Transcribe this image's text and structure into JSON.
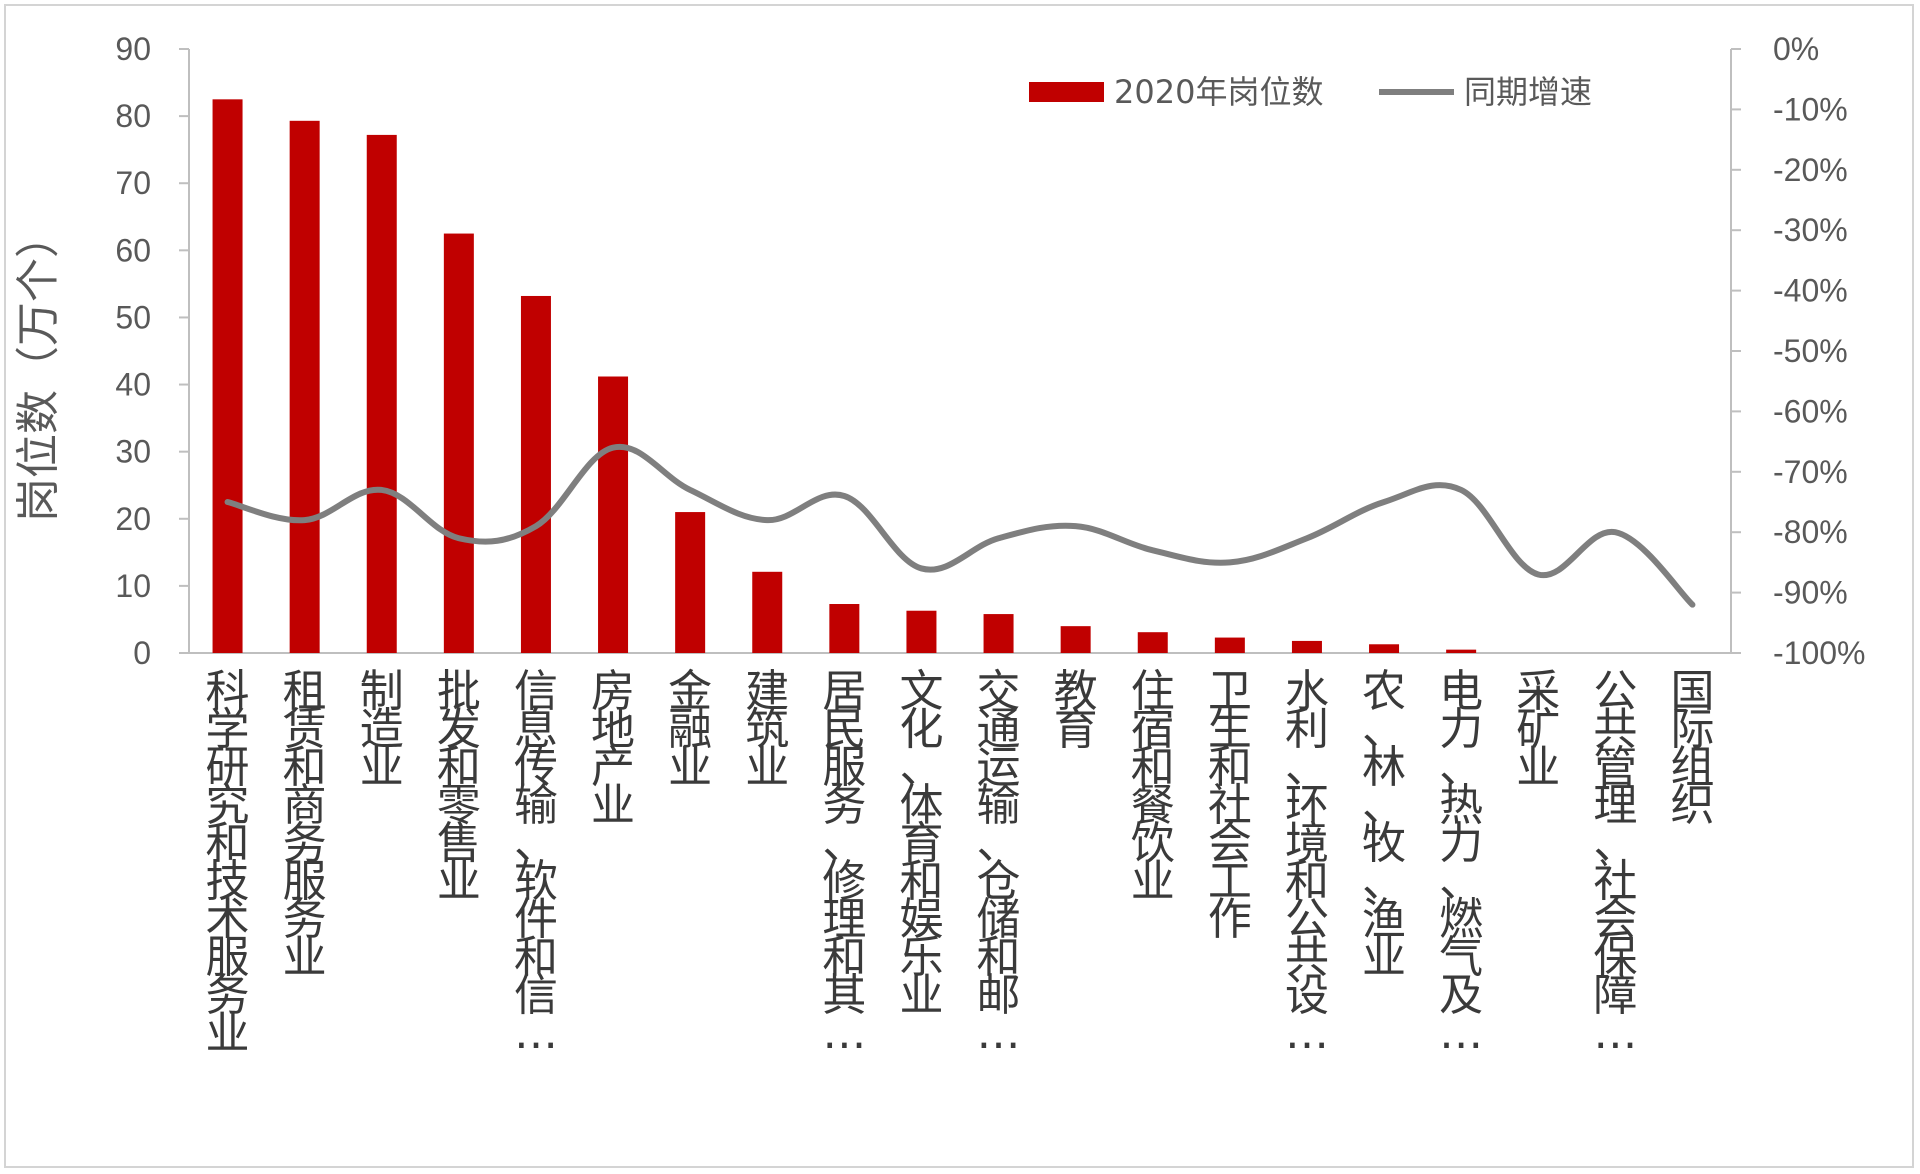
{
  "chart_data": {
    "type": "bar+line",
    "categories": [
      "科学研究和技术服务业",
      "租赁和商务服务业",
      "制造业",
      "批发和零售业",
      "信息传输、软件和信…",
      "房地产业",
      "金融业",
      "建筑业",
      "居民服务、修理和其…",
      "文化、体育和娱乐业",
      "交通运输、仓储和邮…",
      "教育",
      "住宿和餐饮业",
      "卫生和社会工作",
      "水利、环境和公共设…",
      "农、林、牧、渔业",
      "电力、热力、燃气及…",
      "采矿业",
      "公共管理、社会保障…",
      "国际组织"
    ],
    "series": [
      {
        "name": "2020年岗位数",
        "type": "bar",
        "axis": "left",
        "color": "#C00000",
        "values": [
          82.5,
          79.3,
          77.2,
          62.5,
          53.2,
          41.2,
          21.0,
          12.1,
          7.3,
          6.3,
          5.8,
          4.0,
          3.1,
          2.3,
          1.8,
          1.3,
          0.5,
          0,
          0,
          0
        ]
      },
      {
        "name": "同期增速",
        "type": "line",
        "axis": "right",
        "color": "#7F7F7F",
        "values": [
          -75,
          -78,
          -73,
          -81,
          -79,
          -66,
          -73,
          -78,
          -74,
          -86,
          -81,
          -79,
          -83,
          -85,
          -81,
          -75,
          -73,
          -87,
          -80,
          -92
        ]
      }
    ],
    "y_left": {
      "label": "岗位数（万个）",
      "range": [
        0,
        90
      ],
      "ticks": [
        "0",
        "10",
        "20",
        "30",
        "40",
        "50",
        "60",
        "70",
        "80",
        "90"
      ]
    },
    "y_right": {
      "range": [
        -100,
        0
      ],
      "ticks": [
        "-100%",
        "-90%",
        "-80%",
        "-70%",
        "-60%",
        "-50%",
        "-40%",
        "-30%",
        "-20%",
        "-10%",
        "0%"
      ]
    },
    "legend_position": "top-right",
    "grid": false
  }
}
